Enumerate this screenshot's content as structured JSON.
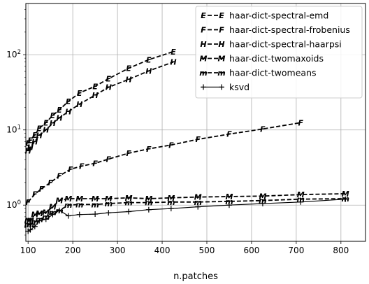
{
  "chart_data": {
    "type": "line",
    "title": "",
    "xlabel": "n.patches",
    "ylabel": "",
    "yscale": "log",
    "xlim": [
      95,
      855
    ],
    "ylim": [
      0.33,
      480
    ],
    "grid": true,
    "legend_position": "top-right",
    "x_ticks": [
      "100",
      "200",
      "300",
      "400",
      "500",
      "600",
      "700",
      "800"
    ],
    "y_ticks": [
      "10^0",
      "10^1",
      "10^2"
    ],
    "y_tick_labels": [
      {
        "base": "10",
        "exp": "0"
      },
      {
        "base": "10",
        "exp": "1"
      },
      {
        "base": "10",
        "exp": "2"
      }
    ],
    "series": [
      {
        "name": "haar-dict-spectral-emd",
        "marker": "E",
        "linestyle": "dashed",
        "x": [
          100,
          105,
          115,
          125,
          140,
          155,
          170,
          190,
          215,
          250,
          280,
          325,
          370,
          425
        ],
        "y": [
          6.7,
          7.3,
          8.6,
          10.5,
          12.5,
          15.6,
          18.5,
          24,
          31,
          38,
          48,
          66,
          86,
          110
        ]
      },
      {
        "name": "haar-dict-spectral-frobenius",
        "marker": "F",
        "linestyle": "dashed",
        "x": [
          100,
          115,
          130,
          150,
          170,
          195,
          220,
          250,
          280,
          325,
          370,
          420,
          480,
          550,
          625,
          710
        ],
        "y": [
          1.1,
          1.4,
          1.65,
          2.0,
          2.45,
          3.0,
          3.3,
          3.6,
          4.1,
          4.9,
          5.6,
          6.3,
          7.5,
          8.8,
          10.3,
          12.5
        ]
      },
      {
        "name": "haar-dict-spectral-haarpsi",
        "marker": "H",
        "linestyle": "dashed",
        "x": [
          100,
          105,
          115,
          125,
          140,
          155,
          170,
          190,
          215,
          250,
          280,
          325,
          370,
          425
        ],
        "y": [
          5.3,
          5.9,
          7.0,
          8.5,
          10.0,
          12.3,
          14.5,
          17.5,
          22,
          29,
          37,
          47,
          61,
          80
        ]
      },
      {
        "name": "haar-dict-twomaxoids",
        "marker": "M",
        "linestyle": "dashed",
        "x": [
          100,
          105,
          115,
          125,
          140,
          155,
          170,
          190,
          215,
          250,
          280,
          325,
          370,
          420,
          480,
          550,
          625,
          710,
          810
        ],
        "y": [
          0.62,
          0.62,
          0.75,
          0.78,
          0.8,
          0.95,
          1.15,
          1.22,
          1.22,
          1.22,
          1.22,
          1.25,
          1.22,
          1.25,
          1.28,
          1.3,
          1.32,
          1.38,
          1.42
        ]
      },
      {
        "name": "haar-dict-twomeans",
        "marker": "m",
        "linestyle": "dashed",
        "x": [
          100,
          105,
          115,
          125,
          140,
          155,
          170,
          190,
          215,
          250,
          280,
          325,
          370,
          420,
          480,
          550,
          625,
          710,
          810
        ],
        "y": [
          0.55,
          0.55,
          0.6,
          0.65,
          0.7,
          0.8,
          0.85,
          1.0,
          1.02,
          1.02,
          1.05,
          1.08,
          1.08,
          1.1,
          1.1,
          1.12,
          1.15,
          1.2,
          1.22
        ]
      },
      {
        "name": "ksvd",
        "marker": "+",
        "linestyle": "solid",
        "x": [
          100,
          105,
          115,
          125,
          140,
          155,
          170,
          190,
          215,
          250,
          280,
          325,
          370,
          420,
          480,
          550,
          625,
          710,
          810
        ],
        "y": [
          0.45,
          0.47,
          0.52,
          0.62,
          0.65,
          0.75,
          0.85,
          0.72,
          0.75,
          0.76,
          0.79,
          0.82,
          0.87,
          0.9,
          0.95,
          1.0,
          1.05,
          1.1,
          1.2
        ]
      }
    ]
  }
}
